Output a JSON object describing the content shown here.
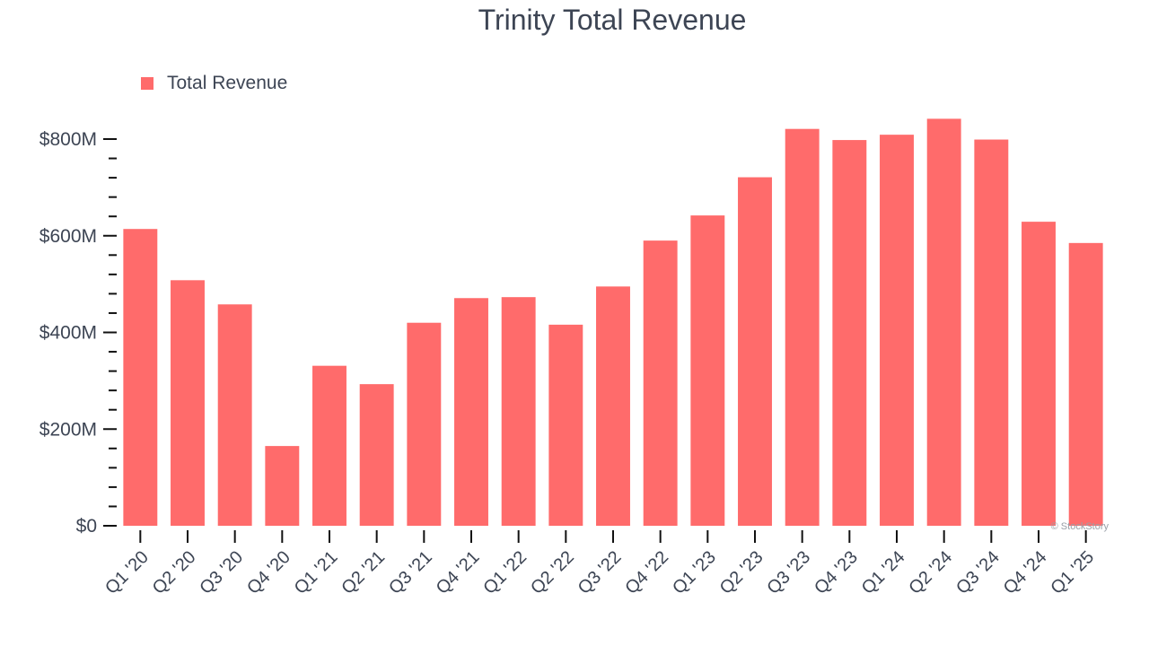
{
  "chart_data": {
    "type": "bar",
    "title": "Trinity Total Revenue",
    "xlabel": "",
    "ylabel": "",
    "ylim": [
      0,
      800
    ],
    "y_ticks": [
      0,
      200,
      400,
      600,
      800
    ],
    "y_tick_labels": [
      "$0",
      "$200M",
      "$400M",
      "$600M",
      "$800M"
    ],
    "grid": false,
    "legend_position": "top-left",
    "categories": [
      "Q1 '20",
      "Q2 '20",
      "Q3 '20",
      "Q4 '20",
      "Q1 '21",
      "Q2 '21",
      "Q3 '21",
      "Q4 '21",
      "Q1 '22",
      "Q2 '22",
      "Q3 '22",
      "Q4 '22",
      "Q1 '23",
      "Q2 '23",
      "Q3 '23",
      "Q4 '23",
      "Q1 '24",
      "Q2 '24",
      "Q3 '24",
      "Q4 '24",
      "Q1 '25"
    ],
    "series": [
      {
        "name": "Total Revenue",
        "color": "#ff6b6b",
        "values": [
          614,
          508,
          458,
          165,
          331,
          293,
          420,
          471,
          473,
          416,
          495,
          590,
          642,
          721,
          821,
          798,
          809,
          842,
          799,
          629,
          585
        ]
      }
    ],
    "watermark": "© StockStory"
  }
}
